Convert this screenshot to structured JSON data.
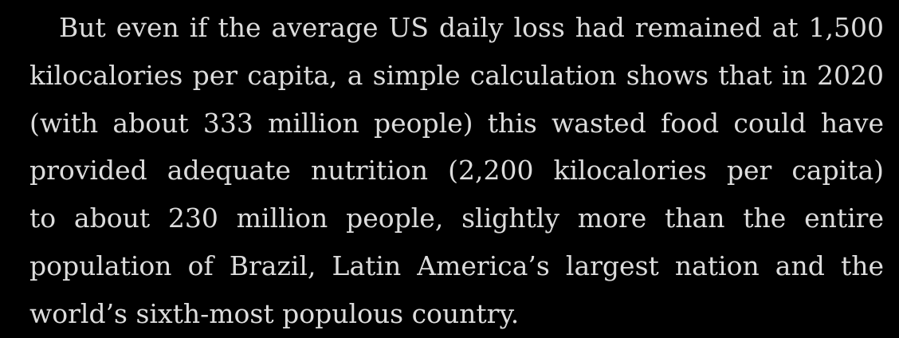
{
  "reader": {
    "paragraph_lines": [
      "But even if the average US daily loss had remained at 1,500",
      "kilocalories per capita, a simple calculation shows that in 2020",
      "(with about 333 million people) this wasted food could have",
      "provided adequate nutrition (2,200 kilocalories per capita)",
      "to about 230 million people, slightly more than the entire",
      "population of Brazil, Latin America’s largest nation and the",
      "world’s sixth-most populous country."
    ]
  }
}
